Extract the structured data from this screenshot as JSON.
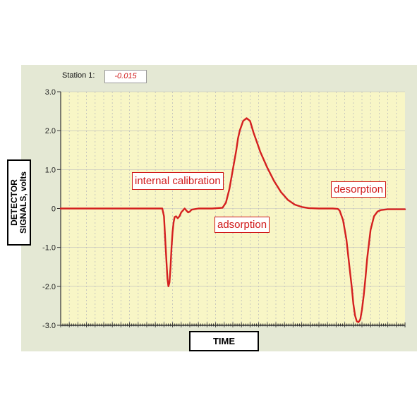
{
  "station": {
    "label": "Station 1:",
    "value": "-0.015"
  },
  "chart_data": {
    "type": "line",
    "title": "",
    "xlabel": "TIME",
    "ylabel": "DETECTOR SIGNALS, volts",
    "ylim": [
      -3.0,
      3.0
    ],
    "xlim": [
      0,
      100
    ],
    "yticks": [
      3.0,
      2.0,
      1.0,
      0,
      -1.0,
      -2.0,
      -3.0
    ],
    "ytick_labels": [
      "3.0",
      "2.0",
      "1.0",
      "0",
      "-1.0",
      "-2.0",
      "-3.0"
    ],
    "grid": true,
    "colors": {
      "line": "#d42020",
      "plot_bg": "#f8f6c6",
      "panel_bg": "#e4e8d4",
      "grid": "#bdbdbd"
    },
    "series": [
      {
        "x": [
          0,
          25,
          29.5,
          30,
          30.5,
          31,
          31.3,
          31.6,
          31.9,
          32.2,
          32.5,
          32.8,
          33.1,
          33.5,
          34,
          34.5,
          35,
          35.5,
          36,
          36.5,
          37,
          37.5,
          38,
          40,
          44,
          47,
          48,
          49,
          50,
          51,
          51.5,
          52,
          53,
          54,
          55,
          56,
          57,
          58,
          60,
          62,
          64,
          66,
          68,
          70,
          72,
          75,
          79,
          80.5,
          81,
          82,
          83,
          84,
          84.5,
          85,
          85.5,
          86,
          86.5,
          87,
          87.5,
          88,
          88.5,
          89,
          90,
          91,
          92,
          93,
          95,
          100
        ],
        "y": [
          0,
          0,
          0,
          -0.2,
          -1.0,
          -1.8,
          -2.0,
          -1.9,
          -1.5,
          -1.0,
          -0.6,
          -0.35,
          -0.22,
          -0.2,
          -0.25,
          -0.2,
          -0.1,
          -0.05,
          0.0,
          -0.05,
          -0.1,
          -0.08,
          -0.03,
          0,
          0,
          0.02,
          0.15,
          0.5,
          1.0,
          1.5,
          1.8,
          2.0,
          2.25,
          2.32,
          2.25,
          1.95,
          1.7,
          1.45,
          1.05,
          0.7,
          0.42,
          0.22,
          0.1,
          0.04,
          0.01,
          0,
          0,
          -0.01,
          -0.05,
          -0.3,
          -0.8,
          -1.6,
          -2.0,
          -2.45,
          -2.75,
          -2.9,
          -2.92,
          -2.85,
          -2.6,
          -2.25,
          -1.8,
          -1.3,
          -0.55,
          -0.2,
          -0.08,
          -0.04,
          -0.02,
          -0.02
        ]
      }
    ],
    "annotations": [
      "internal calibration",
      "adsorption",
      "desorption"
    ]
  }
}
